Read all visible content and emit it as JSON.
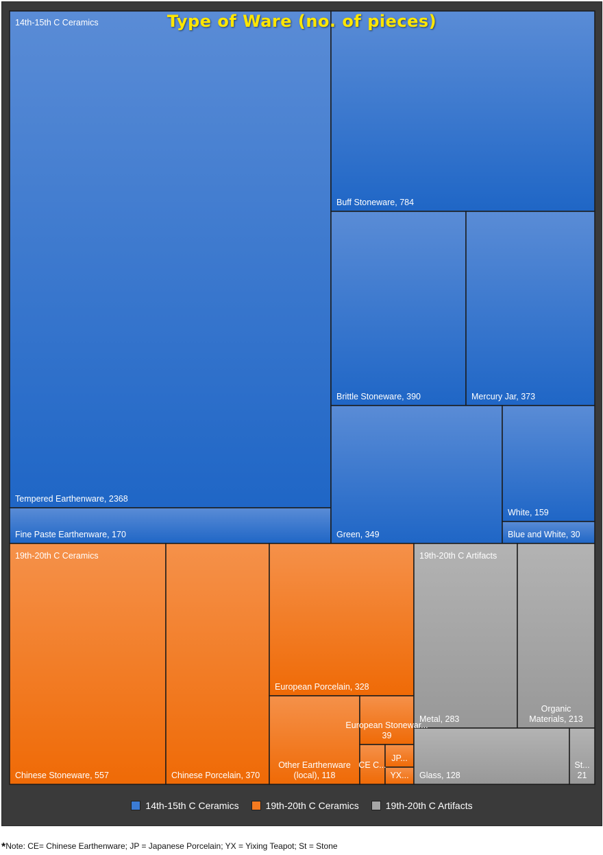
{
  "chart_data": {
    "type": "treemap",
    "title": "Type of Ware (no. of pieces)",
    "legend_position": "bottom",
    "groups": [
      {
        "name": "14th-15th C Ceramics",
        "color": "#2f74cf",
        "items": [
          {
            "name": "Tempered Earthenware",
            "value": 2368,
            "label": "Tempered Earthenware, 2368"
          },
          {
            "name": "Fine Paste Earthenware",
            "value": 170,
            "label": "Fine Paste Earthenware, 170"
          },
          {
            "name": "Buff Stoneware",
            "value": 784,
            "label": "Buff Stoneware, 784"
          },
          {
            "name": "Brittle Stoneware",
            "value": 390,
            "label": "Brittle Stoneware, 390"
          },
          {
            "name": "Mercury Jar",
            "value": 373,
            "label": "Mercury Jar, 373"
          },
          {
            "name": "Green",
            "value": 349,
            "label": "Green, 349"
          },
          {
            "name": "White",
            "value": 159,
            "label": "White, 159"
          },
          {
            "name": "Blue and White",
            "value": 30,
            "label": "Blue and White, 30"
          }
        ]
      },
      {
        "name": "19th-20th C Ceramics",
        "color": "#f47a20",
        "items": [
          {
            "name": "Chinese Stoneware",
            "value": 557,
            "label": "Chinese Stoneware, 557"
          },
          {
            "name": "Chinese Porcelain",
            "value": 370,
            "label": "Chinese Porcelain, 370"
          },
          {
            "name": "European Porcelain",
            "value": 328,
            "label": "European Porcelain, 328"
          },
          {
            "name": "Other Earthenware (local)",
            "value": 118,
            "label": "Other Earthenware (local), 118"
          },
          {
            "name": "European Stoneware",
            "value": 39,
            "label": "European Stonewar... 39"
          },
          {
            "name": "CE",
            "value": null,
            "label": "CE C..."
          },
          {
            "name": "JP",
            "value": null,
            "label": "JP..."
          },
          {
            "name": "YX",
            "value": null,
            "label": "YX..."
          }
        ]
      },
      {
        "name": "19th-20th C Artifacts",
        "color": "#a5a5a5",
        "items": [
          {
            "name": "Metal",
            "value": 283,
            "label": "Metal, 283"
          },
          {
            "name": "Organic Materials",
            "value": 213,
            "label": "Organic Materials, 213"
          },
          {
            "name": "Glass",
            "value": 128,
            "label": "Glass, 128"
          },
          {
            "name": "St",
            "value": 21,
            "label": "St... 21"
          }
        ]
      }
    ]
  },
  "legend": [
    {
      "label": "14th-15th C Ceramics",
      "color": "#3b7bd4"
    },
    {
      "label": "19th-20th C Ceramics",
      "color": "#f47a20"
    },
    {
      "label": "19th-20th C Artifacts",
      "color": "#a5a5a5"
    }
  ],
  "footnote": {
    "star": "*",
    "text": "Note: CE= Chinese Earthenware; JP = Japanese Porcelain; YX = Yixing Teapot; St = Stone"
  }
}
